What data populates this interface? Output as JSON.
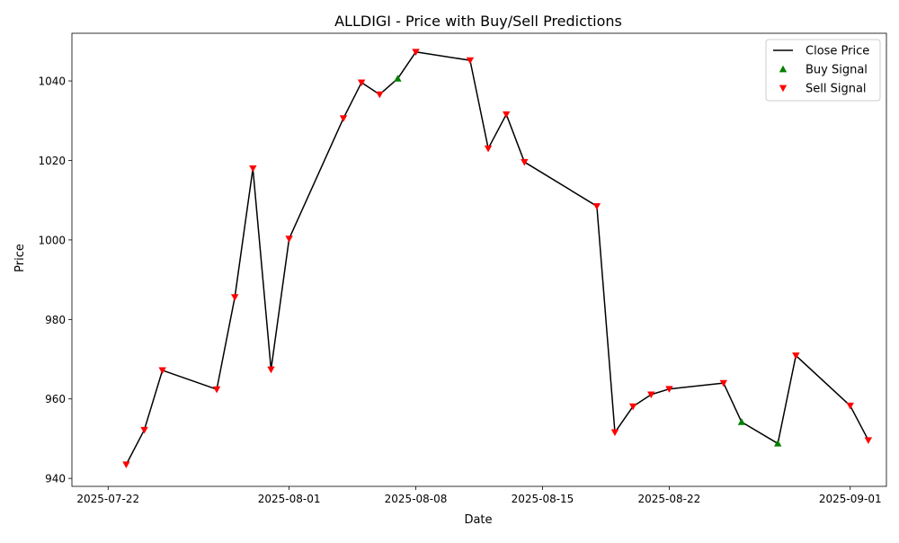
{
  "chart_data": {
    "type": "line",
    "title": "ALLDIGI - Price with Buy/Sell Predictions",
    "xlabel": "Date",
    "ylabel": "Price",
    "x_ticks": [
      "2025-07-22",
      "2025-08-01",
      "2025-08-08",
      "2025-08-15",
      "2025-08-22",
      "2025-09-01"
    ],
    "y_ticks": [
      940,
      960,
      980,
      1000,
      1020,
      1040
    ],
    "xlim": [
      "2025-07-20",
      "2025-09-03"
    ],
    "ylim": [
      938,
      1052
    ],
    "grid": false,
    "legend_position": "top-right",
    "series": [
      {
        "name": "Close Price",
        "color": "#000000",
        "points": [
          {
            "x": "2025-07-23",
            "y": 943.5
          },
          {
            "x": "2025-07-24",
            "y": 952.2
          },
          {
            "x": "2025-07-25",
            "y": 967.2
          },
          {
            "x": "2025-07-28",
            "y": 962.4
          },
          {
            "x": "2025-07-29",
            "y": 985.6
          },
          {
            "x": "2025-07-30",
            "y": 1018.0
          },
          {
            "x": "2025-07-31",
            "y": 967.4
          },
          {
            "x": "2025-08-01",
            "y": 1000.3
          },
          {
            "x": "2025-08-04",
            "y": 1030.6
          },
          {
            "x": "2025-08-05",
            "y": 1039.6
          },
          {
            "x": "2025-08-06",
            "y": 1036.6
          },
          {
            "x": "2025-08-07",
            "y": 1040.6
          },
          {
            "x": "2025-08-08",
            "y": 1047.3
          },
          {
            "x": "2025-08-11",
            "y": 1045.2
          },
          {
            "x": "2025-08-12",
            "y": 1023.0
          },
          {
            "x": "2025-08-13",
            "y": 1031.6
          },
          {
            "x": "2025-08-14",
            "y": 1019.6
          },
          {
            "x": "2025-08-18",
            "y": 1008.5
          },
          {
            "x": "2025-08-19",
            "y": 951.6
          },
          {
            "x": "2025-08-20",
            "y": 958.1
          },
          {
            "x": "2025-08-21",
            "y": 961.1
          },
          {
            "x": "2025-08-22",
            "y": 962.5
          },
          {
            "x": "2025-08-25",
            "y": 964.0
          },
          {
            "x": "2025-08-26",
            "y": 954.2
          },
          {
            "x": "2025-08-28",
            "y": 948.8
          },
          {
            "x": "2025-08-29",
            "y": 970.9
          },
          {
            "x": "2025-09-01",
            "y": 958.3
          },
          {
            "x": "2025-09-02",
            "y": 949.6
          }
        ]
      },
      {
        "name": "Buy Signal",
        "color": "#008000",
        "marker": "triangle-up",
        "points": [
          {
            "x": "2025-08-07",
            "y": 1040.6
          },
          {
            "x": "2025-08-26",
            "y": 954.2
          },
          {
            "x": "2025-08-28",
            "y": 948.8
          }
        ]
      },
      {
        "name": "Sell Signal",
        "color": "#ff0000",
        "marker": "triangle-down",
        "points": [
          {
            "x": "2025-07-23",
            "y": 943.5
          },
          {
            "x": "2025-07-24",
            "y": 952.2
          },
          {
            "x": "2025-07-25",
            "y": 967.2
          },
          {
            "x": "2025-07-28",
            "y": 962.4
          },
          {
            "x": "2025-07-29",
            "y": 985.6
          },
          {
            "x": "2025-07-30",
            "y": 1018.0
          },
          {
            "x": "2025-07-31",
            "y": 967.4
          },
          {
            "x": "2025-08-01",
            "y": 1000.3
          },
          {
            "x": "2025-08-04",
            "y": 1030.6
          },
          {
            "x": "2025-08-05",
            "y": 1039.6
          },
          {
            "x": "2025-08-06",
            "y": 1036.6
          },
          {
            "x": "2025-08-08",
            "y": 1047.3
          },
          {
            "x": "2025-08-11",
            "y": 1045.2
          },
          {
            "x": "2025-08-12",
            "y": 1023.0
          },
          {
            "x": "2025-08-13",
            "y": 1031.6
          },
          {
            "x": "2025-08-14",
            "y": 1019.6
          },
          {
            "x": "2025-08-18",
            "y": 1008.5
          },
          {
            "x": "2025-08-19",
            "y": 951.6
          },
          {
            "x": "2025-08-20",
            "y": 958.1
          },
          {
            "x": "2025-08-21",
            "y": 961.1
          },
          {
            "x": "2025-08-22",
            "y": 962.5
          },
          {
            "x": "2025-08-25",
            "y": 964.0
          },
          {
            "x": "2025-08-29",
            "y": 970.9
          },
          {
            "x": "2025-09-01",
            "y": 958.3
          },
          {
            "x": "2025-09-02",
            "y": 949.6
          }
        ]
      }
    ]
  }
}
